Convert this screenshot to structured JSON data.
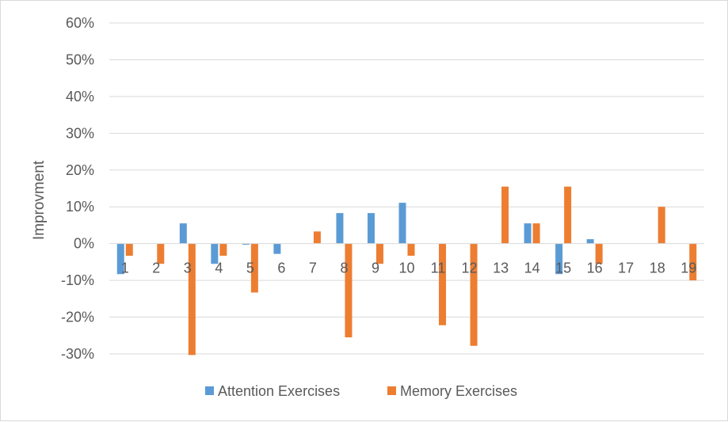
{
  "chart_data": {
    "type": "bar",
    "title": "",
    "xlabel": "",
    "ylabel": "Improvment",
    "ylim": [
      -0.3,
      0.6
    ],
    "yticks": [
      0.6,
      0.5,
      0.4,
      0.3,
      0.2,
      0.1,
      0.0,
      -0.1,
      -0.2,
      -0.3
    ],
    "ytick_labels": [
      "60%",
      "50%",
      "40%",
      "30%",
      "20%",
      "10%",
      "0%",
      "-10%",
      "-20%",
      "-30%"
    ],
    "grid": true,
    "legend_position": "bottom",
    "categories": [
      "1",
      "2",
      "3",
      "4",
      "5",
      "6",
      "7",
      "8",
      "9",
      "10",
      "11",
      "12",
      "13",
      "14",
      "15",
      "16",
      "17",
      "18",
      "19"
    ],
    "series": [
      {
        "name": "Attention Exercises",
        "color": "#5b9bd5",
        "values": [
          -0.083,
          0,
          0.055,
          -0.055,
          -0.003,
          -0.028,
          0,
          0.083,
          0.083,
          0.111,
          0,
          0,
          0,
          0.055,
          -0.083,
          0.012,
          0,
          0,
          0
        ]
      },
      {
        "name": "Memory Exercises",
        "color": "#ed7d31",
        "values": [
          -0.033,
          -0.055,
          -0.303,
          -0.033,
          -0.133,
          0,
          0.033,
          -0.255,
          -0.055,
          -0.033,
          -0.222,
          -0.278,
          0.155,
          0.055,
          0.155,
          -0.055,
          0,
          0.1,
          -0.1
        ]
      }
    ]
  }
}
